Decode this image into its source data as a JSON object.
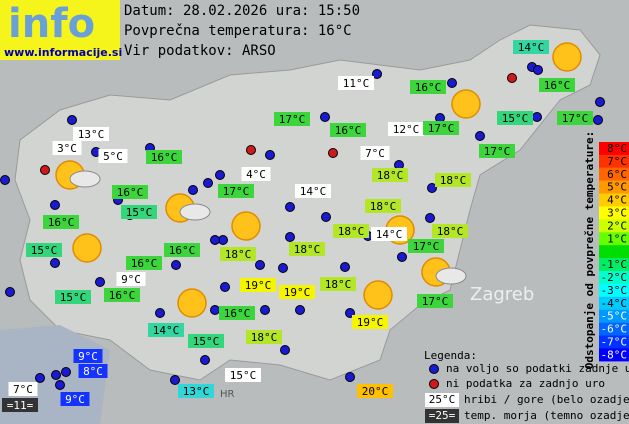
{
  "header": {
    "logo": "info",
    "site": "www.informacije.si",
    "date_line": "Datum: 28.02.2026 ura: 15:50",
    "avg_line": "Povprečna temperatura: 16°C",
    "source_line": "Vir podatkov: ARSO"
  },
  "map_labels": [
    "Zagreb",
    "HR"
  ],
  "stations": [
    {
      "temp": "14°C",
      "color": "#33d6a0"
    },
    {
      "temp": "16°C",
      "color": "#3cd63c"
    },
    {
      "temp": "16°C",
      "color": "#3cd63c"
    },
    {
      "temp": "11°C",
      "color": "#ffffff"
    },
    {
      "temp": "17°C",
      "color": "#3cd63c"
    },
    {
      "temp": "16°C",
      "color": "#3cd63c"
    },
    {
      "temp": "12°C",
      "color": "#ffffff"
    },
    {
      "temp": "17°C",
      "color": "#3cd63c"
    },
    {
      "temp": "15°C",
      "color": "#33d67a"
    },
    {
      "temp": "17°C",
      "color": "#3cd63c"
    },
    {
      "temp": "13°C",
      "color": "#ffffff"
    },
    {
      "temp": "3°C",
      "color": "#ffffff"
    },
    {
      "temp": "5°C",
      "color": "#ffffff"
    },
    {
      "temp": "16°C",
      "color": "#3cd63c"
    },
    {
      "temp": "7°C",
      "color": "#ffffff"
    },
    {
      "temp": "17°C",
      "color": "#3cd63c"
    },
    {
      "temp": "4°C",
      "color": "#ffffff"
    },
    {
      "temp": "18°C",
      "color": "#b4e628"
    },
    {
      "temp": "18°C",
      "color": "#b4e628"
    },
    {
      "temp": "16°C",
      "color": "#3cd63c"
    },
    {
      "temp": "17°C",
      "color": "#3cd63c"
    },
    {
      "temp": "14°C",
      "color": "#ffffff"
    },
    {
      "temp": "15°C",
      "color": "#33d67a"
    },
    {
      "temp": "18°C",
      "color": "#b4e628"
    },
    {
      "temp": "16°C",
      "color": "#3cd63c"
    },
    {
      "temp": "18°C",
      "color": "#b4e628"
    },
    {
      "temp": "14°C",
      "color": "#ffffff"
    },
    {
      "temp": "18°C",
      "color": "#b4e628"
    },
    {
      "temp": "15°C",
      "color": "#33d67a"
    },
    {
      "temp": "16°C",
      "color": "#3cd63c"
    },
    {
      "temp": "18°C",
      "color": "#b4e628"
    },
    {
      "temp": "18°C",
      "color": "#b4e628"
    },
    {
      "temp": "17°C",
      "color": "#3cd63c"
    },
    {
      "temp": "16°C",
      "color": "#3cd63c"
    },
    {
      "temp": "9°C",
      "color": "#ffffff"
    },
    {
      "temp": "19°C",
      "color": "#f5f500"
    },
    {
      "temp": "19°C",
      "color": "#f5f500"
    },
    {
      "temp": "18°C",
      "color": "#b4e628"
    },
    {
      "temp": "15°C",
      "color": "#33d67a"
    },
    {
      "temp": "16°C",
      "color": "#3cd63c"
    },
    {
      "temp": "17°C",
      "color": "#3cd63c"
    },
    {
      "temp": "16°C",
      "color": "#3cd63c"
    },
    {
      "temp": "14°C",
      "color": "#33d6a0"
    },
    {
      "temp": "19°C",
      "color": "#f5f500"
    },
    {
      "temp": "15°C",
      "color": "#33d67a"
    },
    {
      "temp": "18°C",
      "color": "#b4e628"
    },
    {
      "temp": "9°C",
      "color": "#1533ff"
    },
    {
      "temp": "8°C",
      "color": "#1533ff"
    },
    {
      "temp": "15°C",
      "color": "#ffffff"
    },
    {
      "temp": "7°C",
      "color": "#ffffff"
    },
    {
      "temp": "13°C",
      "color": "#33d6d6"
    },
    {
      "temp": "20°C",
      "color": "#ffc000"
    },
    {
      "temp": "9°C",
      "color": "#1533ff"
    },
    {
      "temp": "=11=",
      "color": "#333333"
    }
  ],
  "scale": {
    "title": "Odstopanje od povprečne temperature:",
    "steps": [
      {
        "label": "8°C",
        "color": "#ff0000"
      },
      {
        "label": "7°C",
        "color": "#ff3300"
      },
      {
        "label": "6°C",
        "color": "#ff6600"
      },
      {
        "label": "5°C",
        "color": "#ff9900"
      },
      {
        "label": "4°C",
        "color": "#ffcc00"
      },
      {
        "label": "3°C",
        "color": "#ffff00"
      },
      {
        "label": "2°C",
        "color": "#ccff00"
      },
      {
        "label": "1°C",
        "color": "#66ff00"
      },
      {
        "label": null,
        "color": "#00dd00"
      },
      {
        "label": "-1°C",
        "color": "#00ee66"
      },
      {
        "label": "-2°C",
        "color": "#00ffcc"
      },
      {
        "label": "-3°C",
        "color": "#00ffff"
      },
      {
        "label": "-4°C",
        "color": "#00ccff"
      },
      {
        "label": "-5°C",
        "color": "#0099ff"
      },
      {
        "label": "-6°C",
        "color": "#0066ff"
      },
      {
        "label": "-7°C",
        "color": "#0033ff"
      },
      {
        "label": "-8°C",
        "color": "#0000ff"
      }
    ]
  },
  "legend": {
    "title": "Legenda:",
    "available": "na voljo so podatki zadnje ure",
    "missing": "ni podatka za zadnjo uro",
    "mountain_sample": "25°C",
    "mountain_text": "hribi / gore (belo ozadje)",
    "sea_sample": "=25=",
    "sea_text": "temp. morja (temno ozadje)"
  }
}
